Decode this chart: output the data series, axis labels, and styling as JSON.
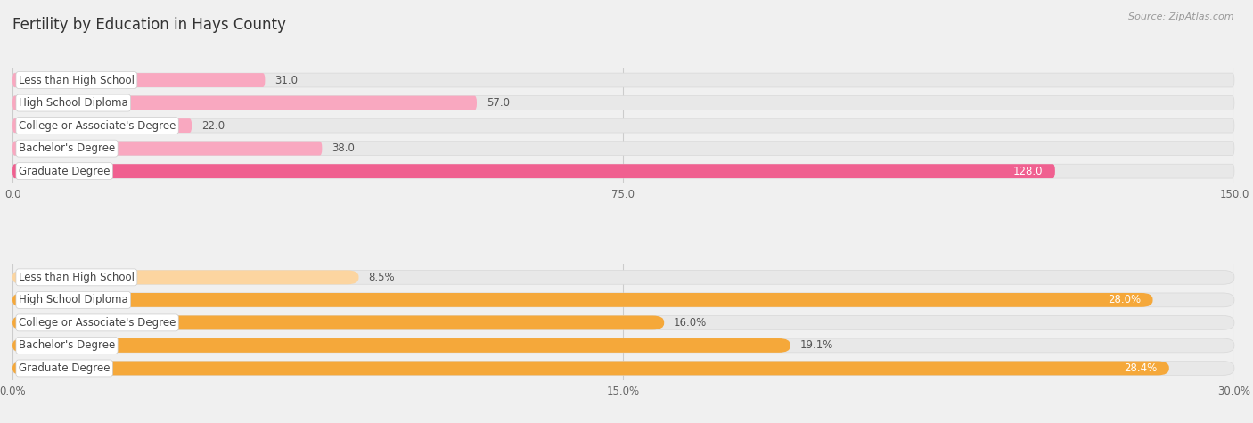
{
  "title": "Fertility by Education in Hays County",
  "source": "Source: ZipAtlas.com",
  "top_chart": {
    "categories": [
      "Less than High School",
      "High School Diploma",
      "College or Associate's Degree",
      "Bachelor's Degree",
      "Graduate Degree"
    ],
    "values": [
      31.0,
      57.0,
      22.0,
      38.0,
      128.0
    ],
    "bar_colors": [
      "#f9a8c0",
      "#f9a8c0",
      "#f9a8c0",
      "#f9a8c0",
      "#f06090"
    ],
    "value_colors": [
      "#555555",
      "#555555",
      "#555555",
      "#555555",
      "#ffffff"
    ],
    "xlim": [
      0,
      150.0
    ],
    "xticks": [
      0.0,
      75.0,
      150.0
    ],
    "xticklabels": [
      "0.0",
      "75.0",
      "150.0"
    ]
  },
  "bottom_chart": {
    "categories": [
      "Less than High School",
      "High School Diploma",
      "College or Associate's Degree",
      "Bachelor's Degree",
      "Graduate Degree"
    ],
    "values": [
      8.5,
      28.0,
      16.0,
      19.1,
      28.4
    ],
    "bar_colors": [
      "#fcd5a0",
      "#f5a83a",
      "#f5a83a",
      "#f5a83a",
      "#f5a83a"
    ],
    "value_colors": [
      "#555555",
      "#ffffff",
      "#555555",
      "#ffffff",
      "#ffffff"
    ],
    "xlim": [
      0,
      30.0
    ],
    "xticks": [
      0.0,
      15.0,
      30.0
    ],
    "xticklabels": [
      "0.0%",
      "15.0%",
      "30.0%"
    ]
  },
  "bg_color": "#f0f0f0",
  "bar_bg_color": "#e8e8e8",
  "bar_bg_edge_color": "#d8d8d8",
  "label_box_color": "#ffffff",
  "label_box_edge": "#cccccc",
  "grid_color": "#cccccc",
  "title_fontsize": 12,
  "label_fontsize": 8.5,
  "value_fontsize": 8.5,
  "tick_fontsize": 8.5,
  "source_fontsize": 8
}
